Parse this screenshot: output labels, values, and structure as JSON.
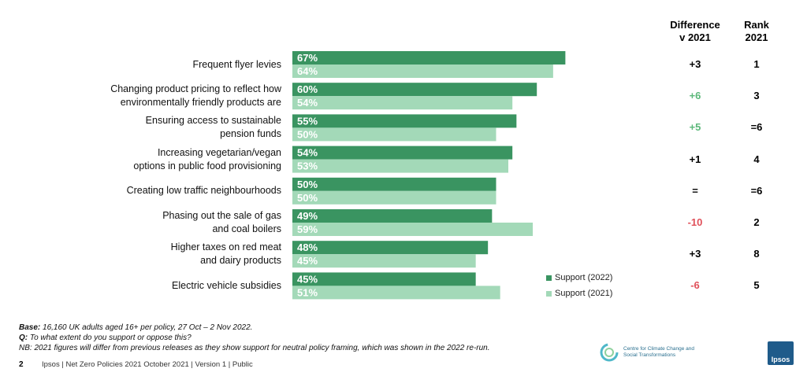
{
  "colors": {
    "support_2022": "#3a9461",
    "support_2021": "#a3d9b8",
    "positive_change": "#5cb87a",
    "negative_change": "#e0505a",
    "neutral_change": "#000000"
  },
  "headers": {
    "difference_line1": "Difference",
    "difference_line2": "v 2021",
    "rank_line1": "Rank",
    "rank_line2": "2021"
  },
  "chart_data": {
    "type": "bar",
    "orientation": "horizontal",
    "value_unit": "%",
    "xlim": [
      0,
      100
    ],
    "categories": [
      "Frequent flyer levies",
      "Changing product pricing to reflect how environmentally friendly products are",
      "Ensuring access to sustainable pension funds",
      "Increasing vegetarian/vegan options in public food provisioning",
      "Creating low traffic neighbourhoods",
      "Phasing out the sale of gas and coal boilers",
      "Higher taxes on red meat and dairy products",
      "Electric vehicle subsidies"
    ],
    "series": [
      {
        "name": "Support (2022)",
        "values": [
          67,
          60,
          55,
          54,
          50,
          49,
          48,
          45
        ]
      },
      {
        "name": "Support (2021)",
        "values": [
          64,
          54,
          50,
          53,
          50,
          59,
          45,
          51
        ]
      }
    ],
    "data_labels_2022": [
      "67%",
      "60%",
      "55%",
      "54%",
      "50%",
      "49%",
      "48%",
      "45%"
    ],
    "data_labels_2021": [
      "64%",
      "54%",
      "50%",
      "53%",
      "50%",
      "59%",
      "45%",
      "51%"
    ],
    "legend": [
      "Support (2022)",
      "Support (2021)"
    ],
    "legend_position": "bottom-right",
    "grid": false
  },
  "category_lines": [
    [
      "Frequent flyer levies"
    ],
    [
      "Changing product pricing to reflect how",
      "environmentally friendly products are"
    ],
    [
      "Ensuring access to sustainable",
      "pension funds"
    ],
    [
      "Increasing vegetarian/vegan",
      "options in public food provisioning"
    ],
    [
      "Creating low traffic neighbourhoods"
    ],
    [
      "Phasing out the sale of gas",
      "and coal boilers"
    ],
    [
      "Higher taxes on red meat",
      "and dairy products"
    ],
    [
      "Electric vehicle subsidies"
    ]
  ],
  "differences": [
    "+3",
    "+6",
    "+5",
    "+1",
    "=",
    "-10",
    "+3",
    "-6"
  ],
  "difference_tone": [
    "neutral",
    "positive",
    "positive",
    "neutral",
    "neutral",
    "negative",
    "neutral",
    "negative"
  ],
  "ranks": [
    "1",
    "3",
    "=6",
    "4",
    "=6",
    "2",
    "8",
    "5"
  ],
  "footer": {
    "base_label": "Base:",
    "base_text": " 16,160 UK adults aged 16+ per policy, 27 Oct – 2 Nov 2022.",
    "q_label": "Q:",
    "q_text": " To what extent do you support or oppose this?",
    "nb_text": "NB: 2021 figures will differ from previous releases as they show support for neutral policy framing, which was shown in the 2022 re-run.",
    "page_number": "2",
    "meta": "Ipsos | Net Zero Policies 2021  October 2021 | Version 1 | Public"
  },
  "logos": {
    "ccc_text": "Centre for Climate Change and Social Transformations",
    "ipsos_text": "Ipsos"
  }
}
